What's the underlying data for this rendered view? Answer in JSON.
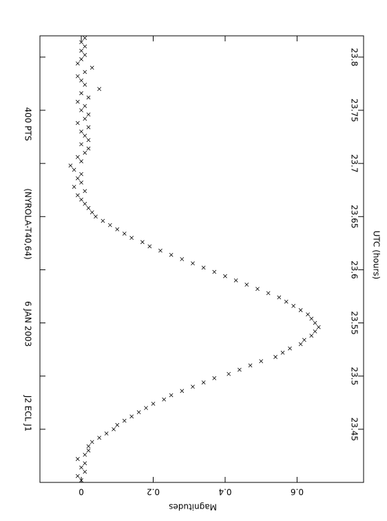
{
  "chart_data": {
    "type": "scatter",
    "title": "J2 ECL J1",
    "date": "6 JAN 2003",
    "site": "(NYROLA-T40,64)",
    "points": "400 PTS",
    "xlabel": "UTC (hours)",
    "ylabel": "Magnitudes",
    "color": "#000000",
    "xlim": [
      23.4,
      23.82
    ],
    "xticks": [
      23.45,
      23.5,
      23.55,
      23.6,
      23.65,
      23.7,
      23.75,
      23.8
    ],
    "ylim": [
      -0.115,
      0.785
    ],
    "yticks": [
      0,
      0.2,
      0.4,
      0.6
    ],
    "x": [
      23.402,
      23.406,
      23.41,
      23.414,
      23.418,
      23.422,
      23.426,
      23.43,
      23.434,
      23.438,
      23.442,
      23.446,
      23.45,
      23.454,
      23.458,
      23.462,
      23.466,
      23.47,
      23.474,
      23.478,
      23.482,
      23.486,
      23.49,
      23.494,
      23.498,
      23.502,
      23.506,
      23.51,
      23.514,
      23.518,
      23.522,
      23.526,
      23.53,
      23.534,
      23.538,
      23.542,
      23.546,
      23.55,
      23.554,
      23.558,
      23.562,
      23.566,
      23.57,
      23.574,
      23.578,
      23.582,
      23.586,
      23.59,
      23.594,
      23.598,
      23.602,
      23.606,
      23.61,
      23.614,
      23.618,
      23.622,
      23.626,
      23.63,
      23.634,
      23.638,
      23.642,
      23.646,
      23.65,
      23.654,
      23.658,
      23.662,
      23.666,
      23.67,
      23.674,
      23.678,
      23.682,
      23.686,
      23.69,
      23.694,
      23.698,
      23.702,
      23.706,
      23.71,
      23.714,
      23.718,
      23.722,
      23.726,
      23.73,
      23.734,
      23.738,
      23.742,
      23.746,
      23.75,
      23.754,
      23.758,
      23.762,
      23.766,
      23.77,
      23.774,
      23.778,
      23.782,
      23.786,
      23.79,
      23.794,
      23.798,
      23.802,
      23.806,
      23.81,
      23.814,
      23.818
    ],
    "values": [
      0.0,
      -0.01,
      0.01,
      0.0,
      0.01,
      -0.01,
      0.01,
      0.02,
      0.02,
      0.03,
      0.05,
      0.07,
      0.09,
      0.1,
      0.12,
      0.14,
      0.16,
      0.18,
      0.2,
      0.23,
      0.25,
      0.28,
      0.31,
      0.34,
      0.37,
      0.41,
      0.44,
      0.47,
      0.5,
      0.54,
      0.56,
      0.58,
      0.61,
      0.62,
      0.64,
      0.65,
      0.66,
      0.65,
      0.64,
      0.63,
      0.61,
      0.59,
      0.57,
      0.55,
      0.52,
      0.49,
      0.46,
      0.43,
      0.4,
      0.37,
      0.34,
      0.31,
      0.28,
      0.25,
      0.22,
      0.19,
      0.17,
      0.14,
      0.12,
      0.1,
      0.08,
      0.06,
      0.04,
      0.03,
      0.02,
      0.01,
      0.0,
      -0.01,
      0.01,
      -0.02,
      0.0,
      -0.01,
      0.0,
      -0.02,
      -0.03,
      0.0,
      -0.01,
      0.01,
      0.02,
      0.0,
      0.02,
      0.01,
      0.0,
      0.02,
      -0.01,
      0.01,
      0.02,
      0.0,
      0.01,
      -0.01,
      0.02,
      0.0,
      0.05,
      0.01,
      0.0,
      -0.01,
      0.01,
      0.03,
      -0.01,
      0.0,
      0.01,
      0.0,
      0.01,
      0.0,
      0.01
    ]
  }
}
